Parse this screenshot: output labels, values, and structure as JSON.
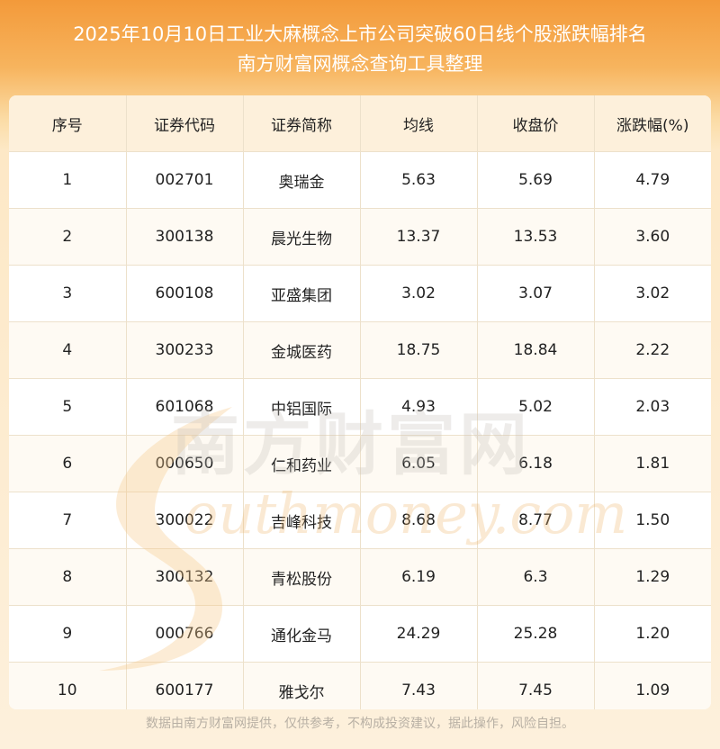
{
  "header": {
    "title_line1": "2025年10月10日工业大麻概念上市公司突破60日线个股涨跌幅排名",
    "title_line2": "南方财富网概念查询工具整理"
  },
  "table": {
    "columns": [
      "序号",
      "证券代码",
      "证券简称",
      "均线",
      "收盘价",
      "涨跌幅(%)"
    ],
    "rows": [
      [
        "1",
        "002701",
        "奥瑞金",
        "5.63",
        "5.69",
        "4.79"
      ],
      [
        "2",
        "300138",
        "晨光生物",
        "13.37",
        "13.53",
        "3.60"
      ],
      [
        "3",
        "600108",
        "亚盛集团",
        "3.02",
        "3.07",
        "3.02"
      ],
      [
        "4",
        "300233",
        "金城医药",
        "18.75",
        "18.84",
        "2.22"
      ],
      [
        "5",
        "601068",
        "中铝国际",
        "4.93",
        "5.02",
        "2.03"
      ],
      [
        "6",
        "000650",
        "仁和药业",
        "6.05",
        "6.18",
        "1.81"
      ],
      [
        "7",
        "300022",
        "吉峰科技",
        "8.68",
        "8.77",
        "1.50"
      ],
      [
        "8",
        "300132",
        "青松股份",
        "6.19",
        "6.3",
        "1.29"
      ],
      [
        "9",
        "000766",
        "通化金马",
        "24.29",
        "25.28",
        "1.20"
      ],
      [
        "10",
        "600177",
        "雅戈尔",
        "7.43",
        "7.45",
        "1.09"
      ]
    ]
  },
  "watermark": {
    "logo_text": "南方财富网",
    "domain_text": "outhmoney.com"
  },
  "footer": {
    "disclaimer": "数据由南方财富网提供，仅供参考，不构成投资建议，据此操作，风险自担。"
  }
}
